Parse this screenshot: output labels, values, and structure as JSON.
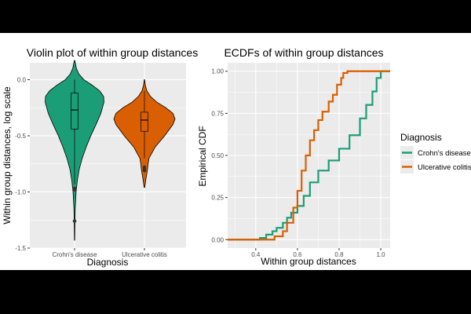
{
  "palette": {
    "crohn": "#1b9e77",
    "uc": "#d95f02",
    "panel_bg": "#ebebeb",
    "grid": "#ffffff",
    "axis_text": "#4d4d4d"
  },
  "chart_data": [
    {
      "type": "violin",
      "title": "Violin plot of within group distances",
      "xlabel": "Diagnosis",
      "ylabel": "Within group distances, log scale",
      "categories": [
        "Crohn's disease",
        "Ulcerative colitis"
      ],
      "ylim": [
        -1.5,
        0.15
      ],
      "yticks": [
        -1.5,
        -1.0,
        -0.5,
        0.0
      ],
      "ytick_labels": [
        "-1.5",
        "-1.0",
        "-0.5",
        "0.0"
      ],
      "grid": true,
      "series": [
        {
          "name": "Crohn's disease",
          "box": {
            "q1": -0.44,
            "median": -0.27,
            "q3": -0.12,
            "whisker_low": -0.93,
            "whisker_high": 0.0
          },
          "outliers": [
            -0.97,
            -0.98,
            -1.26
          ],
          "range": [
            -1.43,
            0.17
          ],
          "density": [
            [
              -1.43,
              0.005
            ],
            [
              -1.3,
              0.01
            ],
            [
              -1.15,
              0.02
            ],
            [
              -1.0,
              0.05
            ],
            [
              -0.9,
              0.09
            ],
            [
              -0.8,
              0.15
            ],
            [
              -0.7,
              0.25
            ],
            [
              -0.6,
              0.38
            ],
            [
              -0.5,
              0.53
            ],
            [
              -0.4,
              0.7
            ],
            [
              -0.3,
              0.86
            ],
            [
              -0.2,
              0.96
            ],
            [
              -0.15,
              0.95
            ],
            [
              -0.1,
              0.82
            ],
            [
              -0.05,
              0.58
            ],
            [
              0.0,
              0.3
            ],
            [
              0.05,
              0.14
            ],
            [
              0.1,
              0.06
            ],
            [
              0.17,
              0.01
            ]
          ]
        },
        {
          "name": "Ulcerative colitis",
          "box": {
            "q1": -0.46,
            "median": -0.36,
            "q3": -0.29,
            "whisker_low": -0.7,
            "whisker_high": -0.1
          },
          "outliers": [
            -0.78,
            -0.8,
            -0.81
          ],
          "range": [
            -0.96,
            0.0
          ],
          "density": [
            [
              -0.96,
              0.01
            ],
            [
              -0.9,
              0.04
            ],
            [
              -0.85,
              0.07
            ],
            [
              -0.8,
              0.1
            ],
            [
              -0.75,
              0.12
            ],
            [
              -0.7,
              0.15
            ],
            [
              -0.6,
              0.35
            ],
            [
              -0.5,
              0.66
            ],
            [
              -0.4,
              0.93
            ],
            [
              -0.35,
              1.0
            ],
            [
              -0.3,
              0.93
            ],
            [
              -0.25,
              0.7
            ],
            [
              -0.2,
              0.4
            ],
            [
              -0.15,
              0.2
            ],
            [
              -0.1,
              0.08
            ],
            [
              -0.05,
              0.03
            ],
            [
              0.0,
              0.005
            ]
          ]
        }
      ]
    },
    {
      "type": "line",
      "title": "ECDFs of within group distances",
      "xlabel": "Within group distances",
      "ylabel": "Empirical CDF",
      "xlim": [
        0.265,
        1.045
      ],
      "ylim": [
        -0.05,
        1.05
      ],
      "xticks": [
        0.4,
        0.6,
        0.8,
        1.0
      ],
      "xtick_labels": [
        "0.4",
        "0.6",
        "0.8",
        "1.0"
      ],
      "yticks": [
        0.0,
        0.25,
        0.5,
        0.75,
        1.0
      ],
      "ytick_labels": [
        "0.00",
        "0.25",
        "0.50",
        "0.75",
        "1.00"
      ],
      "grid": true,
      "legend_position": "right",
      "legend_title": "Diagnosis",
      "series": [
        {
          "name": "Crohn's disease",
          "x": [
            0.265,
            0.38,
            0.42,
            0.45,
            0.48,
            0.5,
            0.53,
            0.55,
            0.57,
            0.6,
            0.63,
            0.66,
            0.7,
            0.75,
            0.8,
            0.85,
            0.9,
            0.93,
            0.96,
            0.98,
            1.0,
            1.045
          ],
          "y": [
            0.0,
            0.0,
            0.01,
            0.03,
            0.05,
            0.07,
            0.1,
            0.13,
            0.16,
            0.2,
            0.26,
            0.34,
            0.41,
            0.47,
            0.54,
            0.62,
            0.72,
            0.8,
            0.88,
            0.96,
            1.0,
            1.0
          ]
        },
        {
          "name": "Ulcerative colitis",
          "x": [
            0.265,
            0.45,
            0.49,
            0.53,
            0.55,
            0.58,
            0.6,
            0.62,
            0.64,
            0.66,
            0.68,
            0.7,
            0.72,
            0.75,
            0.77,
            0.79,
            0.81,
            0.82,
            0.84,
            0.86,
            0.88,
            1.045
          ],
          "y": [
            0.0,
            0.0,
            0.02,
            0.05,
            0.1,
            0.19,
            0.29,
            0.41,
            0.5,
            0.59,
            0.65,
            0.71,
            0.76,
            0.82,
            0.86,
            0.92,
            0.96,
            0.99,
            1.0,
            1.0,
            1.0,
            1.0
          ]
        }
      ]
    }
  ]
}
